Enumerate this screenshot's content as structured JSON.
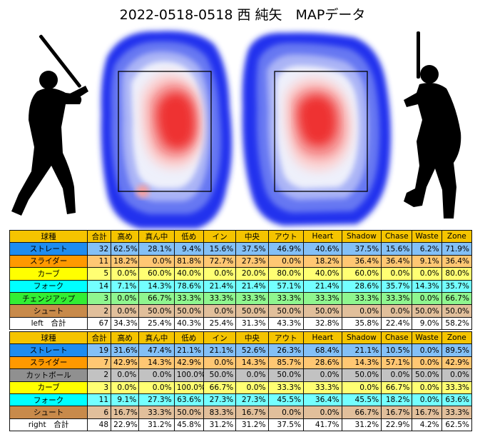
{
  "title": "2022-0518-0518 西 純矢　MAPデータ",
  "colors": {
    "header": "#f5c400",
    "ストレート": "#1e8cf0",
    "スライダー": "#ff9900",
    "カーブ": "#ffff00",
    "フォーク": "#00ffff",
    "チェンジアップ": "#33ee33",
    "シュート": "#c88a4a",
    "カットボール": "#909090",
    "cell_default": "#ffffff"
  },
  "chart_data": [
    {
      "type": "heatmap",
      "panel": "left",
      "note_visible": "zone box with density contours"
    },
    {
      "type": "heatmap",
      "panel": "right",
      "note_visible": "zone box with density contours"
    },
    {
      "type": "table",
      "side": "left",
      "headers": [
        "球種",
        "合計",
        "高め",
        "真ん中",
        "低め",
        "イン",
        "中央",
        "アウト",
        "Heart",
        "Shadow",
        "Chase",
        "Waste",
        "Zone"
      ],
      "rows": [
        {
          "name": "ストレート",
          "cells": [
            "32",
            "62.5%",
            "28.1%",
            "9.4%",
            "15.6%",
            "37.5%",
            "46.9%",
            "40.6%",
            "37.5%",
            "15.6%",
            "6.2%",
            "71.9%"
          ]
        },
        {
          "name": "スライダー",
          "cells": [
            "11",
            "18.2%",
            "0.0%",
            "81.8%",
            "72.7%",
            "27.3%",
            "0.0%",
            "18.2%",
            "36.4%",
            "36.4%",
            "9.1%",
            "36.4%"
          ]
        },
        {
          "name": "カーブ",
          "cells": [
            "5",
            "0.0%",
            "60.0%",
            "40.0%",
            "0.0%",
            "20.0%",
            "80.0%",
            "40.0%",
            "60.0%",
            "0.0%",
            "0.0%",
            "80.0%"
          ]
        },
        {
          "name": "フォーク",
          "cells": [
            "14",
            "7.1%",
            "14.3%",
            "78.6%",
            "21.4%",
            "21.4%",
            "57.1%",
            "21.4%",
            "28.6%",
            "35.7%",
            "14.3%",
            "35.7%"
          ]
        },
        {
          "name": "チェンジアップ",
          "cells": [
            "3",
            "0.0%",
            "66.7%",
            "33.3%",
            "33.3%",
            "33.3%",
            "33.3%",
            "33.3%",
            "33.3%",
            "33.3%",
            "0.0%",
            "66.7%"
          ]
        },
        {
          "name": "シュート",
          "cells": [
            "2",
            "0.0%",
            "50.0%",
            "50.0%",
            "0.0%",
            "50.0%",
            "50.0%",
            "50.0%",
            "0.0%",
            "0.0%",
            "50.0%",
            "50.0%"
          ]
        },
        {
          "name": "left　合計",
          "total": true,
          "cells": [
            "67",
            "34.3%",
            "25.4%",
            "40.3%",
            "25.4%",
            "31.3%",
            "43.3%",
            "32.8%",
            "35.8%",
            "22.4%",
            "9.0%",
            "58.2%"
          ]
        }
      ]
    },
    {
      "type": "table",
      "side": "right",
      "headers": [
        "球種",
        "合計",
        "高め",
        "真ん中",
        "低め",
        "イン",
        "中央",
        "アウト",
        "Heart",
        "Shadow",
        "Chase",
        "Waste",
        "Zone"
      ],
      "rows": [
        {
          "name": "ストレート",
          "cells": [
            "19",
            "31.6%",
            "47.4%",
            "21.1%",
            "21.1%",
            "52.6%",
            "26.3%",
            "68.4%",
            "21.1%",
            "10.5%",
            "0.0%",
            "89.5%"
          ]
        },
        {
          "name": "スライダー",
          "cells": [
            "7",
            "42.9%",
            "14.3%",
            "42.9%",
            "0.0%",
            "14.3%",
            "85.7%",
            "28.6%",
            "14.3%",
            "57.1%",
            "0.0%",
            "42.9%"
          ]
        },
        {
          "name": "カットボール",
          "cells": [
            "2",
            "0.0%",
            "0.0%",
            "100.0%",
            "50.0%",
            "0.0%",
            "50.0%",
            "0.0%",
            "50.0%",
            "0.0%",
            "50.0%",
            "0.0%"
          ]
        },
        {
          "name": "カーブ",
          "cells": [
            "3",
            "0.0%",
            "0.0%",
            "100.0%",
            "66.7%",
            "0.0%",
            "33.3%",
            "33.3%",
            "0.0%",
            "66.7%",
            "0.0%",
            "33.3%"
          ]
        },
        {
          "name": "フォーク",
          "cells": [
            "11",
            "9.1%",
            "27.3%",
            "63.6%",
            "27.3%",
            "27.3%",
            "45.5%",
            "36.4%",
            "45.5%",
            "18.2%",
            "0.0%",
            "63.6%"
          ]
        },
        {
          "name": "シュート",
          "cells": [
            "6",
            "16.7%",
            "33.3%",
            "50.0%",
            "83.3%",
            "16.7%",
            "0.0%",
            "0.0%",
            "66.7%",
            "16.7%",
            "16.7%",
            "33.3%"
          ]
        },
        {
          "name": "right　合計",
          "total": true,
          "cells": [
            "48",
            "22.9%",
            "31.2%",
            "45.8%",
            "31.2%",
            "31.2%",
            "37.5%",
            "41.7%",
            "31.2%",
            "22.9%",
            "4.2%",
            "62.5%"
          ]
        }
      ]
    }
  ]
}
